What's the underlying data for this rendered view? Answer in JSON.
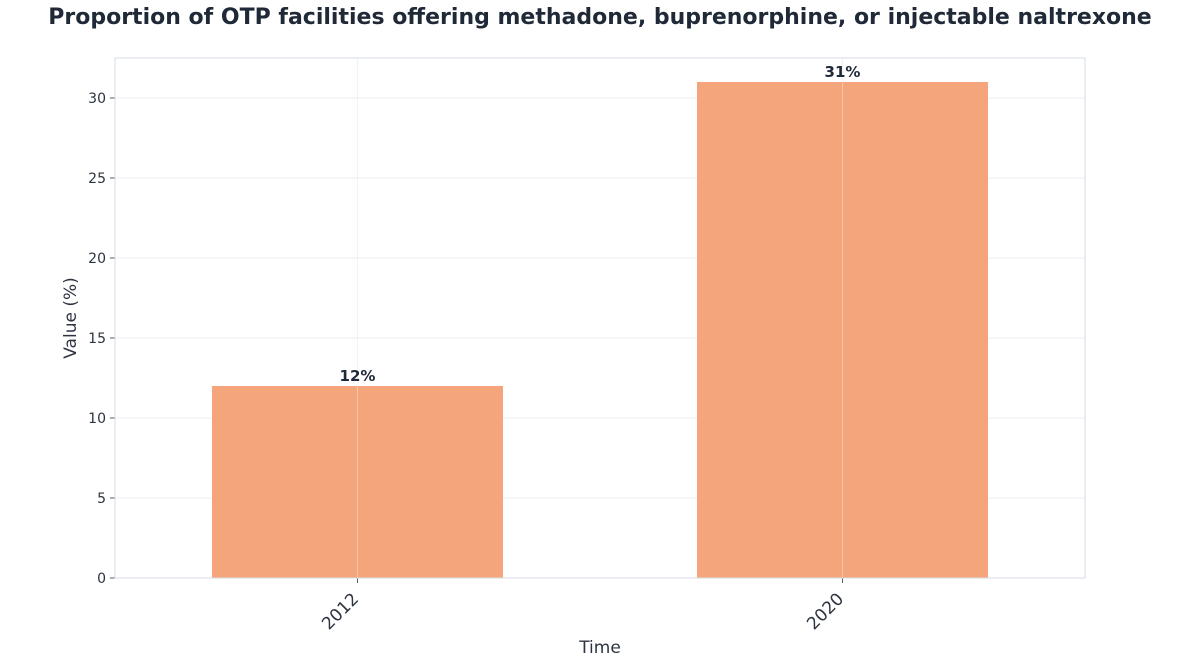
{
  "chart_data": {
    "type": "bar",
    "title": "Proportion of OTP facilities offering methadone, buprenorphine, or injectable naltrexone",
    "xlabel": "Time",
    "ylabel": "Value (%)",
    "categories": [
      "2012",
      "2020"
    ],
    "values": [
      12,
      31
    ],
    "data_labels": [
      "12%",
      "31%"
    ],
    "ylim": [
      0,
      32.5
    ],
    "yticks": [
      0,
      5,
      10,
      15,
      20,
      25,
      30
    ],
    "grid": true,
    "legend": "none",
    "colors": {
      "bar": "#f4a57c",
      "grid": "#e8ecf0",
      "axis": "#d6dde4",
      "text": "#1f2937"
    }
  }
}
